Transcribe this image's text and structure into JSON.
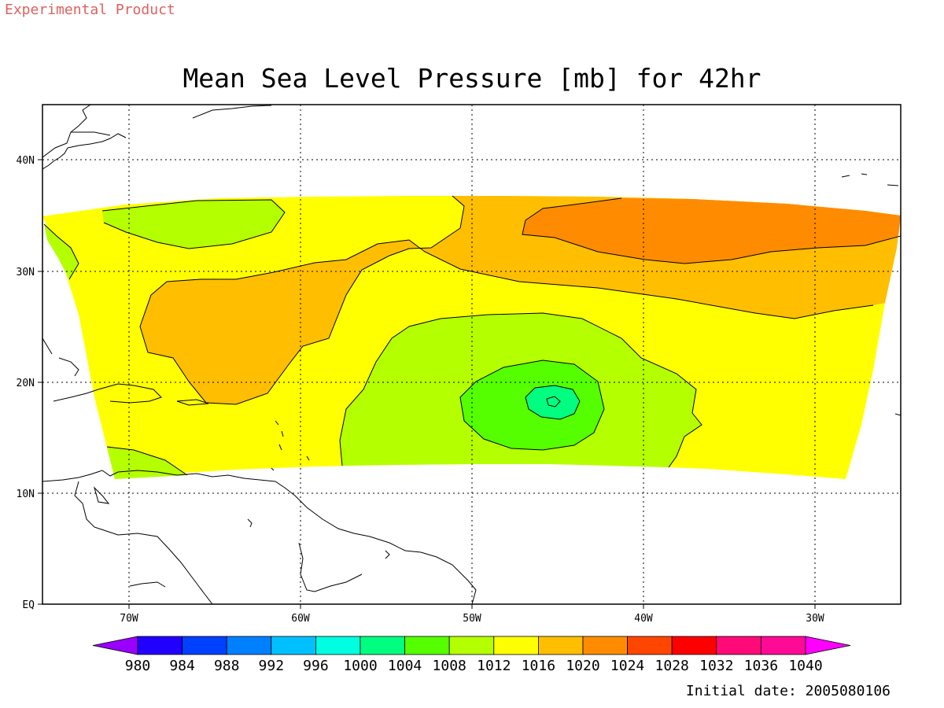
{
  "header": {
    "experimental_label": "Experimental Product"
  },
  "title": "Mean Sea Level Pressure [mb] for 42hr",
  "axes": {
    "lat_labels": [
      "EQ",
      "10N",
      "20N",
      "30N",
      "40N"
    ],
    "lon_labels": [
      "70W",
      "60W",
      "50W",
      "40W",
      "30W"
    ]
  },
  "colorbar": {
    "levels": [
      "980",
      "984",
      "988",
      "992",
      "996",
      "1000",
      "1004",
      "1008",
      "1012",
      "1016",
      "1020",
      "1024",
      "1028",
      "1032",
      "1036",
      "1040"
    ],
    "colors": [
      "#9a00ff",
      "#2200ff",
      "#0040ff",
      "#0080ff",
      "#00c0ff",
      "#00ffe0",
      "#00ff80",
      "#55ff00",
      "#b4ff00",
      "#ffff00",
      "#ffbe00",
      "#ff8c00",
      "#ff4600",
      "#ff0000",
      "#ff0a78",
      "#ff0a96",
      "#ff00ff"
    ]
  },
  "map_colors": {
    "c1012": "#b4ff00",
    "c1016": "#ffff00",
    "c1020": "#ffbe00",
    "c1024": "#ff8c00",
    "c1008": "#55ff00",
    "c1004": "#00ff80"
  },
  "footer": {
    "initial_date": "Initial date: 2005080106"
  }
}
